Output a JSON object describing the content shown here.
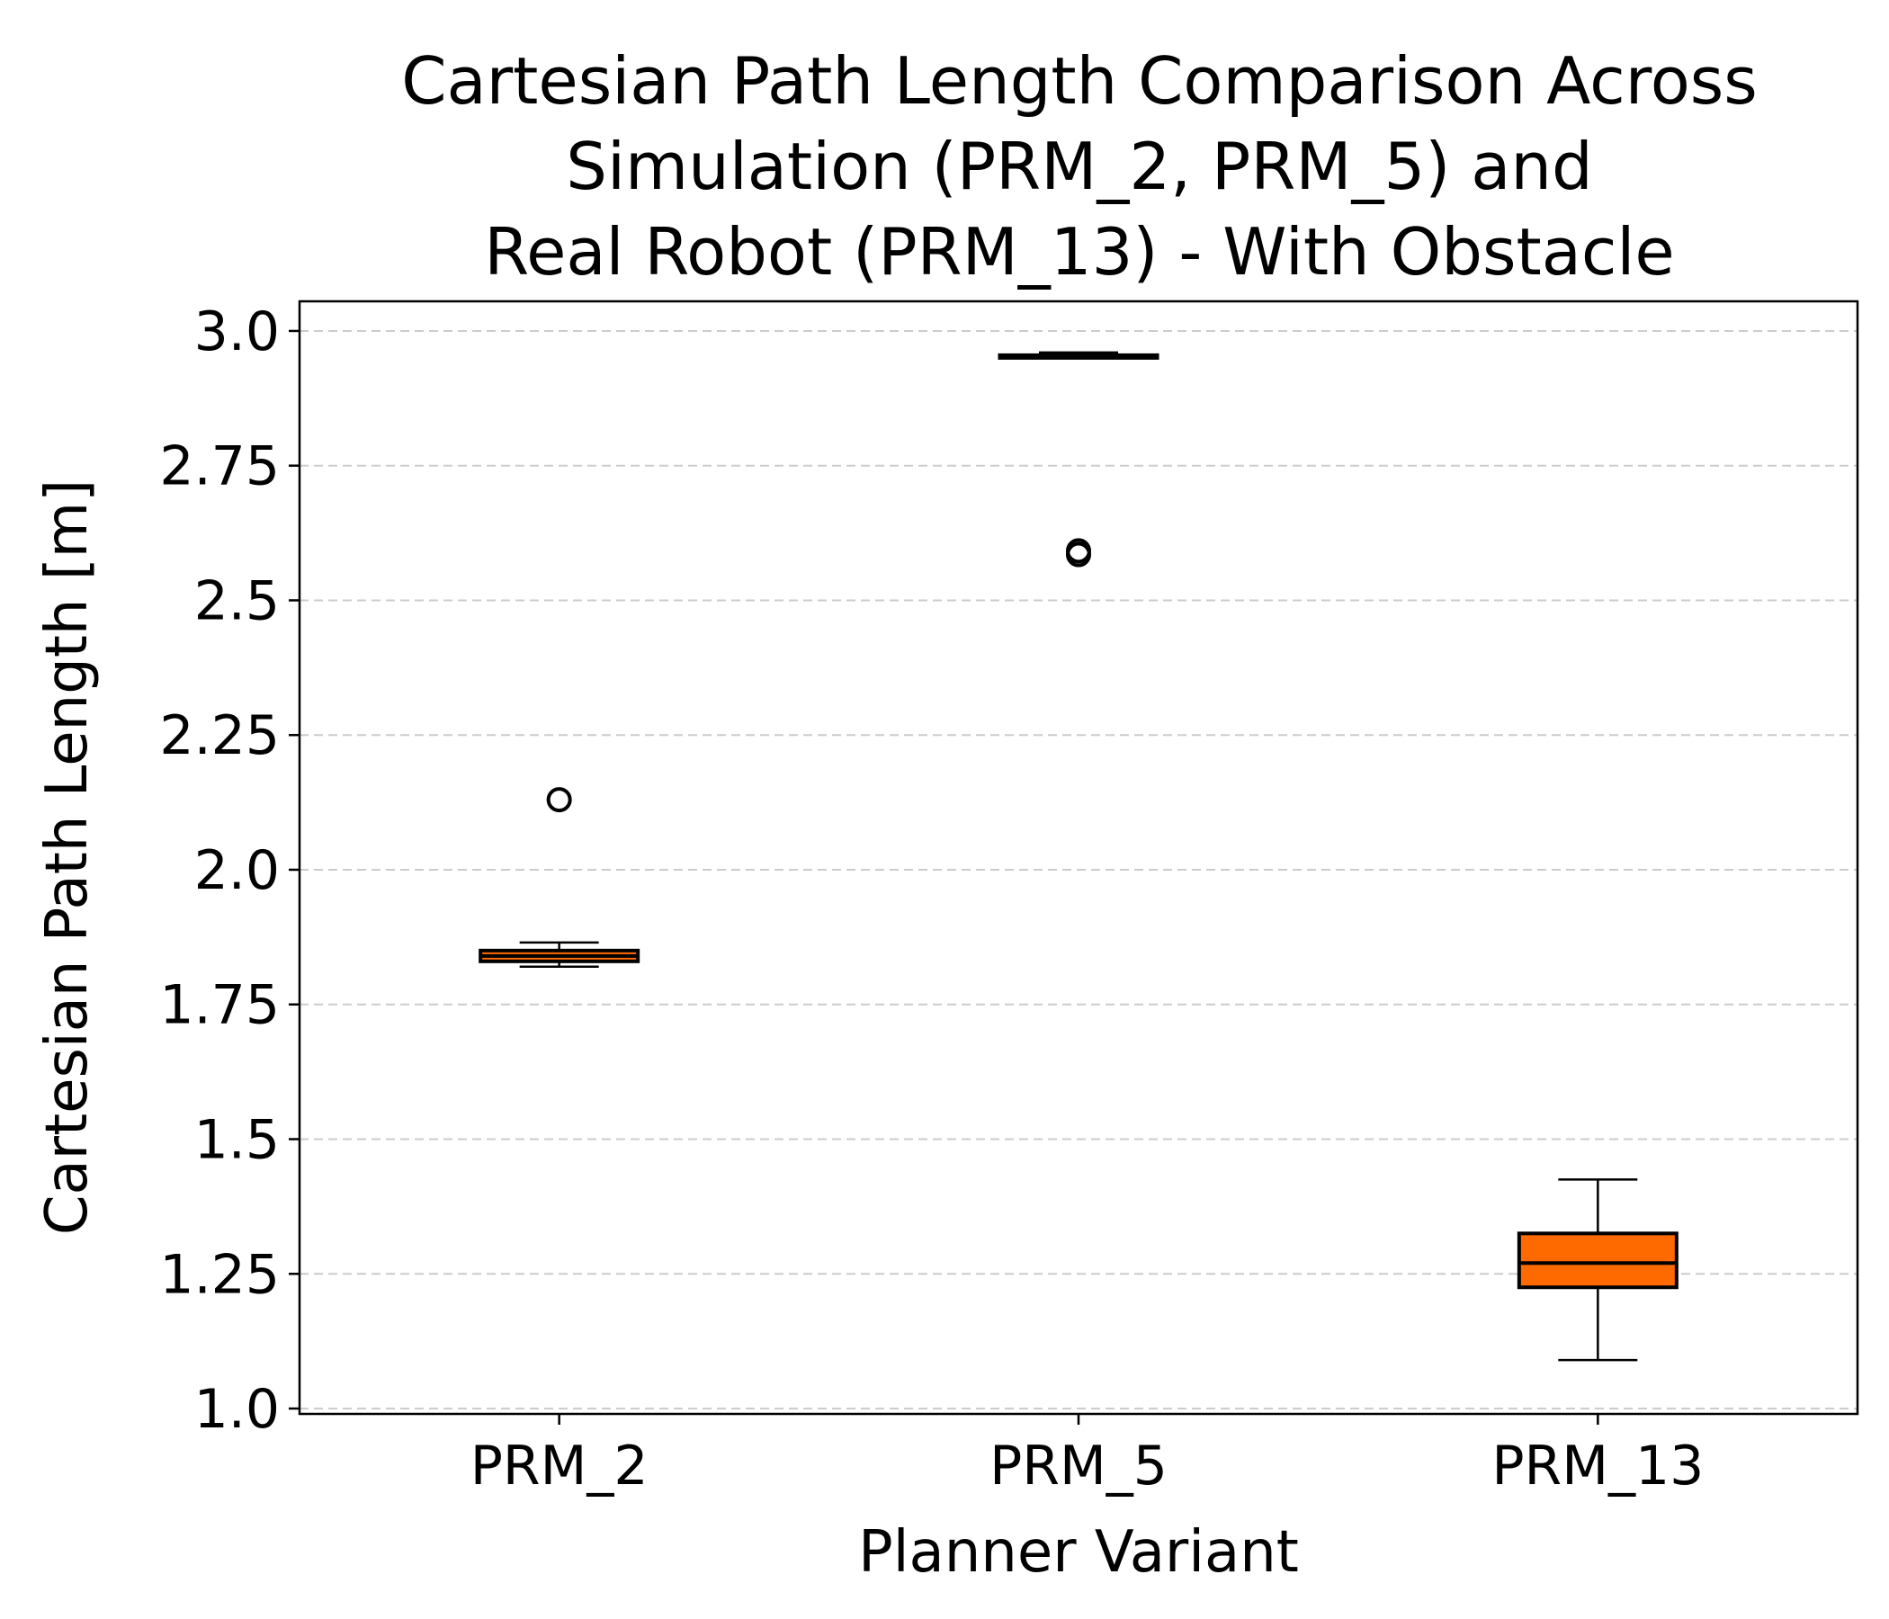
{
  "chart_data": {
    "type": "box",
    "title_lines": [
      "Cartesian Path Length Comparison Across",
      "Simulation (PRM_2, PRM_5) and",
      "Real Robot (PRM_13) - With Obstacle"
    ],
    "xlabel": "Planner Variant",
    "ylabel": "Cartesian Path Length [m]",
    "ylim": [
      0.99,
      3.055
    ],
    "yticks": [
      1.0,
      1.25,
      1.5,
      1.75,
      2.0,
      2.25,
      2.5,
      2.75,
      3.0
    ],
    "ytick_labels": [
      "1.0",
      "1.25",
      "1.5",
      "1.75",
      "2.0",
      "2.25",
      "2.5",
      "2.75",
      "3.0"
    ],
    "grid": "y-dashed",
    "categories": [
      "PRM_2",
      "PRM_5",
      "PRM_13"
    ],
    "boxes": [
      {
        "category": "PRM_2",
        "whisker_low": 1.82,
        "q1": 1.83,
        "median": 1.84,
        "q3": 1.85,
        "whisker_high": 1.865,
        "outliers": [
          2.13
        ],
        "fill": "#ff6a00"
      },
      {
        "category": "PRM_5",
        "whisker_low": 2.95,
        "q1": 2.95,
        "median": 2.952,
        "q3": 2.955,
        "whisker_high": 2.96,
        "outliers": [
          2.585,
          2.592
        ],
        "fill": "#ff6a00"
      },
      {
        "category": "PRM_13",
        "whisker_low": 1.09,
        "q1": 1.225,
        "median": 1.27,
        "q3": 1.325,
        "whisker_high": 1.425,
        "outliers": [],
        "fill": "#ff6a00"
      }
    ],
    "colors": {
      "box_fill": "#ff6a00",
      "grid": "#cccccc",
      "line": "#000000"
    }
  }
}
